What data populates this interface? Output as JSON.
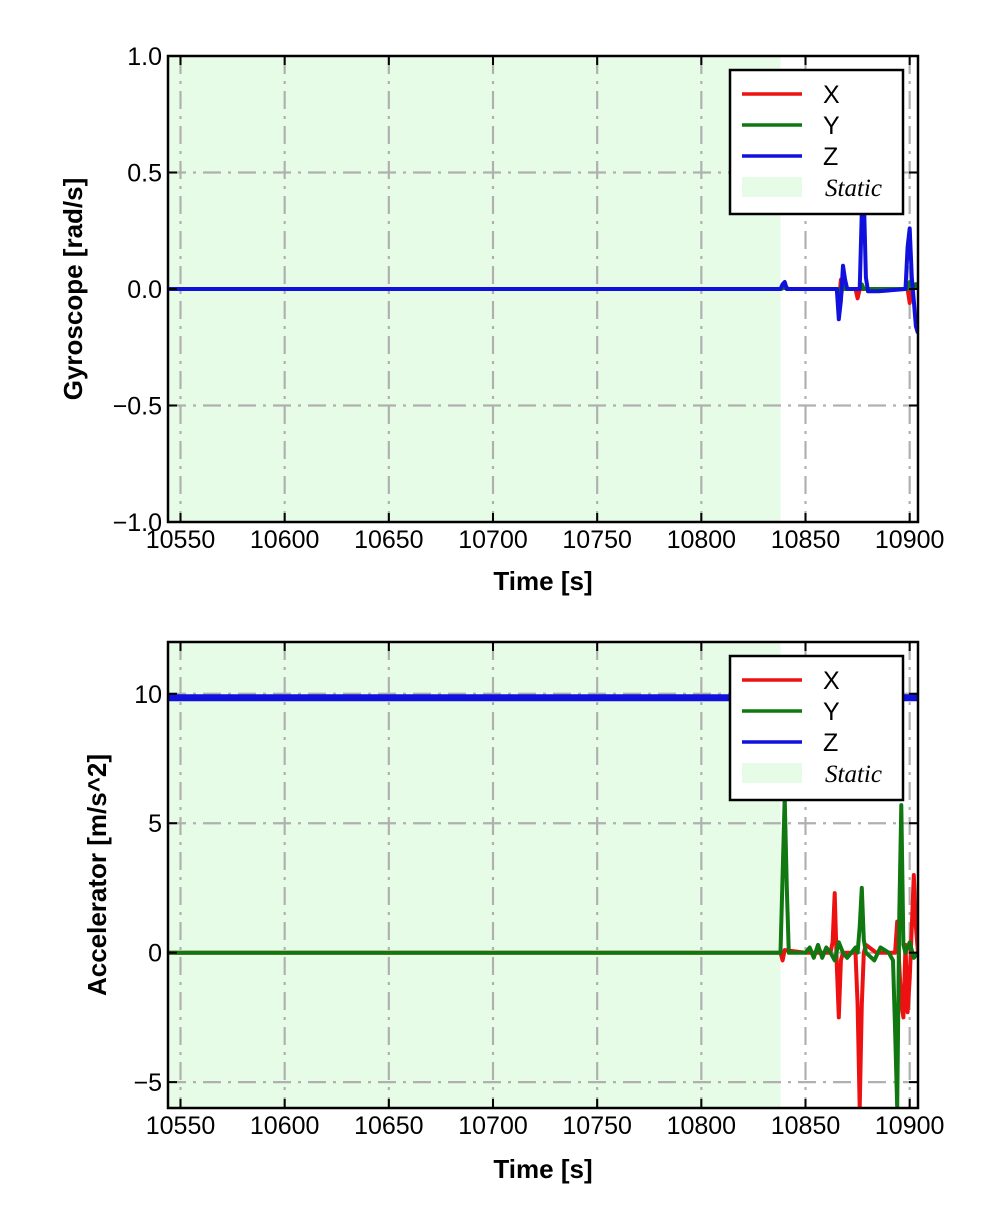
{
  "chart_data": [
    {
      "type": "line",
      "ylabel": "Gyroscope [rad/s]",
      "xlabel": "Time [s]",
      "xlim": [
        10544,
        10904
      ],
      "ylim": [
        -1.0,
        1.0
      ],
      "xticks": [
        10550,
        10600,
        10650,
        10700,
        10750,
        10800,
        10850,
        10900
      ],
      "xtick_labels": [
        "10550",
        "10600",
        "10650",
        "10700",
        "10750",
        "10800",
        "10850",
        "10900"
      ],
      "yticks": [
        -1.0,
        -0.5,
        0.0,
        0.5,
        1.0
      ],
      "ytick_labels": [
        "−1.0",
        "−0.5",
        "0.0",
        "0.5",
        "1.0"
      ],
      "grid": true,
      "legend_position": "top-right",
      "static_region": {
        "label": "Static",
        "x_start": 10544,
        "x_end": 10838,
        "color": "#e6fce6"
      },
      "series": [
        {
          "name": "X",
          "color": "#ee1111",
          "points": [
            [
              10544,
              0
            ],
            [
              10838,
              0
            ],
            [
              10840,
              0.01
            ],
            [
              10842,
              0
            ],
            [
              10865,
              0
            ],
            [
              10866,
              -0.06
            ],
            [
              10867,
              0.04
            ],
            [
              10868,
              0
            ],
            [
              10874,
              0
            ],
            [
              10875,
              -0.04
            ],
            [
              10876,
              0
            ],
            [
              10899,
              0
            ],
            [
              10900,
              -0.06
            ],
            [
              10901,
              0
            ],
            [
              10902,
              0.02
            ],
            [
              10903,
              0
            ]
          ]
        },
        {
          "name": "Y",
          "color": "#117711",
          "points": [
            [
              10544,
              0
            ],
            [
              10838,
              0
            ],
            [
              10840,
              0.005
            ],
            [
              10842,
              0
            ],
            [
              10866,
              0
            ],
            [
              10867,
              -0.03
            ],
            [
              10868,
              0.02
            ],
            [
              10869,
              0
            ],
            [
              10876,
              0
            ],
            [
              10877,
              0.02
            ],
            [
              10878,
              0
            ],
            [
              10899,
              0
            ],
            [
              10900,
              0.03
            ],
            [
              10901,
              0
            ],
            [
              10903,
              0.02
            ],
            [
              10904,
              0
            ]
          ]
        },
        {
          "name": "Z",
          "color": "#1111dd",
          "points": [
            [
              10544,
              0
            ],
            [
              10838,
              0
            ],
            [
              10839,
              0.02
            ],
            [
              10840,
              0.03
            ],
            [
              10841,
              0
            ],
            [
              10865,
              0
            ],
            [
              10866,
              -0.13
            ],
            [
              10867,
              -0.05
            ],
            [
              10868,
              0.1
            ],
            [
              10869,
              0.04
            ],
            [
              10870,
              0
            ],
            [
              10876,
              0
            ],
            [
              10877,
              0.33
            ],
            [
              10878,
              0.4
            ],
            [
              10879,
              0.05
            ],
            [
              10880,
              -0.01
            ],
            [
              10885,
              -0.01
            ],
            [
              10898,
              0
            ],
            [
              10899,
              0.18
            ],
            [
              10900,
              0.26
            ],
            [
              10901,
              0.05
            ],
            [
              10902,
              -0.05
            ],
            [
              10903,
              -0.16
            ],
            [
              10904,
              -0.19
            ]
          ]
        }
      ]
    },
    {
      "type": "line",
      "ylabel": "Accelerator [m/s^2]",
      "xlabel": "Time [s]",
      "xlim": [
        10544,
        10904
      ],
      "ylim": [
        -6,
        12
      ],
      "xticks": [
        10550,
        10600,
        10650,
        10700,
        10750,
        10800,
        10850,
        10900
      ],
      "xtick_labels": [
        "10550",
        "10600",
        "10650",
        "10700",
        "10750",
        "10800",
        "10850",
        "10900"
      ],
      "yticks": [
        -5,
        0,
        5,
        10
      ],
      "ytick_labels": [
        "−5",
        "0",
        "5",
        "10"
      ],
      "grid": true,
      "legend_position": "top-right",
      "static_region": {
        "label": "Static",
        "x_start": 10544,
        "x_end": 10838,
        "color": "#e6fce6"
      },
      "series": [
        {
          "name": "X",
          "color": "#ee1111",
          "points": [
            [
              10544,
              0
            ],
            [
              10838,
              0
            ],
            [
              10839,
              -0.3
            ],
            [
              10840,
              0.1
            ],
            [
              10850,
              0
            ],
            [
              10862,
              0
            ],
            [
              10863,
              0.4
            ],
            [
              10864,
              2.3
            ],
            [
              10865,
              -0.5
            ],
            [
              10866,
              -2.5
            ],
            [
              10867,
              -0.3
            ],
            [
              10868,
              0
            ],
            [
              10874,
              0
            ],
            [
              10875,
              -2.0
            ],
            [
              10876,
              -6.0
            ],
            [
              10877,
              -2.0
            ],
            [
              10878,
              0
            ],
            [
              10879,
              0.3
            ],
            [
              10884,
              0
            ],
            [
              10893,
              0
            ],
            [
              10894,
              1.2
            ],
            [
              10895,
              -0.5
            ],
            [
              10896,
              -2.0
            ],
            [
              10897,
              -2.5
            ],
            [
              10898,
              0.3
            ],
            [
              10899,
              -2.3
            ],
            [
              10900,
              -1.0
            ],
            [
              10901,
              1.0
            ],
            [
              10902,
              3.0
            ],
            [
              10903,
              1.0
            ],
            [
              10904,
              0
            ]
          ]
        },
        {
          "name": "Y",
          "color": "#117711",
          "points": [
            [
              10544,
              0
            ],
            [
              10838,
              0
            ],
            [
              10839,
              3.0
            ],
            [
              10840,
              6.0
            ],
            [
              10841,
              2.5
            ],
            [
              10842,
              0
            ],
            [
              10850,
              0
            ],
            [
              10852,
              0.2
            ],
            [
              10854,
              -0.2
            ],
            [
              10856,
              0.3
            ],
            [
              10858,
              -0.2
            ],
            [
              10860,
              0.2
            ],
            [
              10862,
              0
            ],
            [
              10864,
              -0.3
            ],
            [
              10866,
              0.4
            ],
            [
              10868,
              0
            ],
            [
              10870,
              -0.2
            ],
            [
              10872,
              0
            ],
            [
              10874,
              0.2
            ],
            [
              10875,
              0
            ],
            [
              10876,
              1.0
            ],
            [
              10877,
              2.5
            ],
            [
              10878,
              0.5
            ],
            [
              10879,
              0
            ],
            [
              10883,
              -0.3
            ],
            [
              10886,
              0.2
            ],
            [
              10890,
              0
            ],
            [
              10892,
              -0.3
            ],
            [
              10893,
              -3.0
            ],
            [
              10894,
              -6.0
            ],
            [
              10895,
              1.5
            ],
            [
              10896,
              5.7
            ],
            [
              10897,
              0.3
            ],
            [
              10898,
              0
            ],
            [
              10900,
              0.4
            ],
            [
              10902,
              -0.2
            ],
            [
              10904,
              0
            ]
          ]
        },
        {
          "name": "Z",
          "color": "#1111dd",
          "points": [
            [
              10544,
              9.85
            ],
            [
              10904,
              9.85
            ]
          ]
        }
      ]
    }
  ],
  "legend_static_label": "Static",
  "colors": {
    "grid": "#b0b0b0",
    "static_fill": "#e6fce6"
  }
}
